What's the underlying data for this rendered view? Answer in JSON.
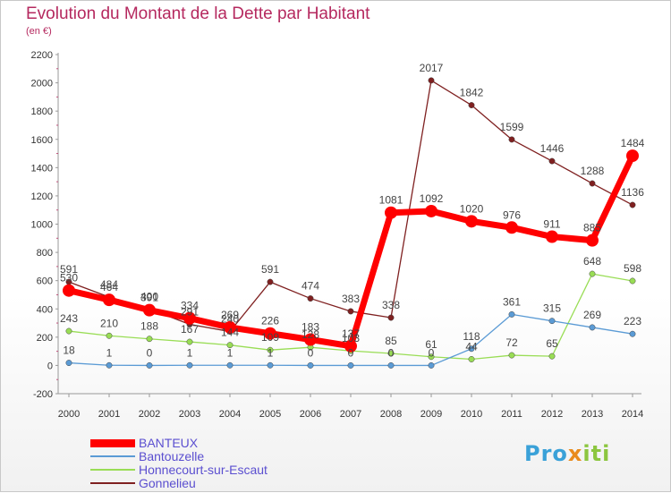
{
  "title": "Evolution du Montant de la Dette par Habitant",
  "subtitle": "(en €)",
  "logo": [
    "Pro",
    "x",
    "iti"
  ],
  "chart_data": {
    "type": "line",
    "x": [
      "2000",
      "2001",
      "2002",
      "2003",
      "2004",
      "2005",
      "2006",
      "2007",
      "2008",
      "2009",
      "2010",
      "2011",
      "2012",
      "2013",
      "2014"
    ],
    "ylim": [
      -200,
      2200
    ],
    "yticks": [
      -200,
      0,
      200,
      400,
      600,
      800,
      1000,
      1200,
      1400,
      1600,
      1800,
      2000,
      2200
    ],
    "grid": false,
    "legend_position": "bottom-left",
    "series": [
      {
        "name": "BANTEUX",
        "color": "#ff0000",
        "values": [
          530,
          464,
          391,
          334,
          269,
          226,
          183,
          137,
          1081,
          1092,
          1020,
          976,
          911,
          885,
          1484
        ]
      },
      {
        "name": "Bantouzelle",
        "color": "#5b9bd5",
        "values": [
          18,
          1,
          0,
          1,
          1,
          1,
          0,
          0,
          0,
          0,
          118,
          361,
          315,
          269,
          223
        ]
      },
      {
        "name": "Honnecourt-sur-Escaut",
        "color": "#99dd55",
        "values": [
          243,
          210,
          188,
          167,
          144,
          109,
          128,
          103,
          85,
          61,
          44,
          72,
          65,
          648,
          598
        ]
      },
      {
        "name": "Gonnelieu",
        "color": "#7f2020",
        "values": [
          591,
          484,
          400,
          291,
          240,
          591,
          474,
          383,
          338,
          2017,
          1842,
          1599,
          1446,
          1288,
          1136
        ]
      }
    ]
  }
}
